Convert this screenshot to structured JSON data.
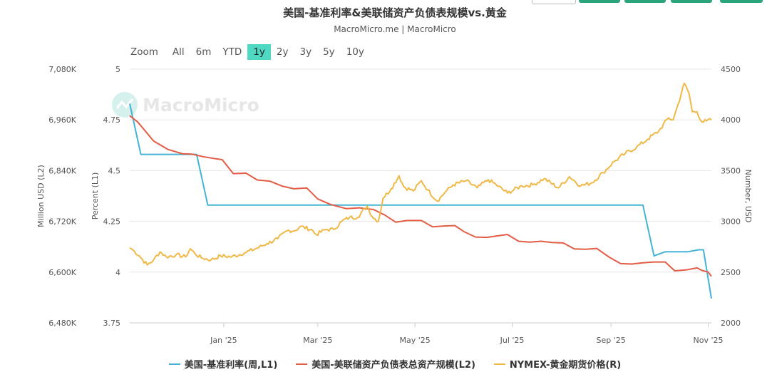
{
  "header": {
    "title": "美国-基准利率&美联储资产负债表规模vs.黄金",
    "subtitle": "MacroMicro.me | MacroMicro",
    "watermark": "MacroMicro"
  },
  "zoom": {
    "label": "Zoom",
    "buttons": [
      "All",
      "6m",
      "YTD",
      "1y",
      "2y",
      "3y",
      "5y",
      "10y"
    ],
    "active": "1y"
  },
  "colors": {
    "rate": "#44b3d6",
    "balance": "#e35c45",
    "gold": "#f0b847"
  },
  "chart_data": {
    "type": "line",
    "x_tick_labels": [
      "Jan '25",
      "Mar '25",
      "May '25",
      "Jul '25",
      "Sep '25",
      "Nov '25"
    ],
    "x_tick_dates": [
      "2025-01-01",
      "2025-03-01",
      "2025-05-01",
      "2025-07-01",
      "2025-09-01",
      "2025-11-01"
    ],
    "x_range": [
      "2024-11-03",
      "2025-11-03"
    ],
    "left_axis_outer": {
      "label": "Million USD (L2)",
      "range": [
        6480000,
        7080000
      ],
      "ticks": [
        "6,480K",
        "6,600K",
        "6,720K",
        "6,840K",
        "6,960K",
        "7,080K"
      ],
      "tick_values": [
        6480000,
        6600000,
        6720000,
        6840000,
        6960000,
        7080000
      ]
    },
    "left_axis_inner": {
      "label": "Percent (L1)",
      "range": [
        3.75,
        5
      ],
      "ticks": [
        "3.75",
        "4",
        "4.25",
        "4.5",
        "4.75",
        "5"
      ],
      "tick_values": [
        3.75,
        4,
        4.25,
        4.5,
        4.75,
        5
      ]
    },
    "right_axis": {
      "label": "Number, USD",
      "range": [
        2000,
        4500
      ],
      "ticks": [
        "2000",
        "2500",
        "3000",
        "3500",
        "4000",
        "4500"
      ],
      "tick_values": [
        2000,
        2500,
        3000,
        3500,
        4000,
        4500
      ]
    },
    "grid": true,
    "legend_position": "bottom",
    "series": [
      {
        "name": "美国-基准利率(周,L1)",
        "axis": "left_inner",
        "points": [
          [
            "2024-11-03",
            4.83
          ],
          [
            "2024-11-10",
            4.58
          ],
          [
            "2024-11-17",
            4.58
          ],
          [
            "2024-12-15",
            4.58
          ],
          [
            "2024-12-22",
            4.33
          ],
          [
            "2025-01-15",
            4.33
          ],
          [
            "2025-03-15",
            4.33
          ],
          [
            "2025-05-15",
            4.33
          ],
          [
            "2025-07-15",
            4.33
          ],
          [
            "2025-09-15",
            4.33
          ],
          [
            "2025-09-21",
            4.33
          ],
          [
            "2025-09-28",
            4.08
          ],
          [
            "2025-10-05",
            4.1
          ],
          [
            "2025-10-19",
            4.1
          ],
          [
            "2025-10-26",
            4.11
          ],
          [
            "2025-10-29",
            4.11
          ],
          [
            "2025-11-03",
            3.87
          ]
        ]
      },
      {
        "name": "美国-美联储资产负债表总资产规模(L2)",
        "axis": "left_outer",
        "points": [
          [
            "2024-11-03",
            6970000
          ],
          [
            "2024-11-08",
            6955000
          ],
          [
            "2024-11-18",
            6910000
          ],
          [
            "2024-11-27",
            6890000
          ],
          [
            "2024-12-06",
            6880000
          ],
          [
            "2024-12-12",
            6879000
          ],
          [
            "2024-12-19",
            6873000
          ],
          [
            "2024-12-27",
            6868000
          ],
          [
            "2024-12-31",
            6866000
          ],
          [
            "2025-01-07",
            6833000
          ],
          [
            "2025-01-15",
            6834000
          ],
          [
            "2025-01-22",
            6818000
          ],
          [
            "2025-01-30",
            6815000
          ],
          [
            "2025-02-07",
            6803000
          ],
          [
            "2025-02-14",
            6797000
          ],
          [
            "2025-02-22",
            6799000
          ],
          [
            "2025-03-01",
            6773000
          ],
          [
            "2025-03-09",
            6760000
          ],
          [
            "2025-03-19",
            6750000
          ],
          [
            "2025-03-27",
            6752000
          ],
          [
            "2025-04-05",
            6748000
          ],
          [
            "2025-04-12",
            6735000
          ],
          [
            "2025-04-19",
            6718000
          ],
          [
            "2025-04-26",
            6722000
          ],
          [
            "2025-05-05",
            6722000
          ],
          [
            "2025-05-12",
            6707000
          ],
          [
            "2025-05-19",
            6709000
          ],
          [
            "2025-05-26",
            6710000
          ],
          [
            "2025-06-01",
            6695000
          ],
          [
            "2025-06-08",
            6683000
          ],
          [
            "2025-06-15",
            6682000
          ],
          [
            "2025-06-28",
            6689000
          ],
          [
            "2025-07-05",
            6673000
          ],
          [
            "2025-07-12",
            6671000
          ],
          [
            "2025-07-19",
            6673000
          ],
          [
            "2025-07-26",
            6670000
          ],
          [
            "2025-08-02",
            6669000
          ],
          [
            "2025-08-09",
            6655000
          ],
          [
            "2025-08-16",
            6654000
          ],
          [
            "2025-08-23",
            6656000
          ],
          [
            "2025-08-31",
            6635000
          ],
          [
            "2025-09-07",
            6620000
          ],
          [
            "2025-09-14",
            6619000
          ],
          [
            "2025-09-21",
            6622000
          ],
          [
            "2025-09-28",
            6624000
          ],
          [
            "2025-10-05",
            6624000
          ],
          [
            "2025-10-11",
            6603000
          ],
          [
            "2025-10-18",
            6605000
          ],
          [
            "2025-10-25",
            6610000
          ],
          [
            "2025-10-28",
            6604000
          ],
          [
            "2025-11-01",
            6600000
          ],
          [
            "2025-11-03",
            6590000
          ]
        ]
      },
      {
        "name": "NYMEX-黄金期货价格(R)",
        "axis": "right",
        "points": [
          [
            "2024-11-03",
            2740
          ],
          [
            "2024-11-06",
            2705
          ],
          [
            "2024-11-09",
            2660
          ],
          [
            "2024-11-14",
            2570
          ],
          [
            "2024-11-18",
            2620
          ],
          [
            "2024-11-22",
            2700
          ],
          [
            "2024-11-26",
            2650
          ],
          [
            "2024-12-02",
            2670
          ],
          [
            "2024-12-08",
            2650
          ],
          [
            "2024-12-11",
            2730
          ],
          [
            "2024-12-14",
            2680
          ],
          [
            "2024-12-18",
            2640
          ],
          [
            "2024-12-24",
            2620
          ],
          [
            "2024-12-30",
            2660
          ],
          [
            "2025-01-06",
            2650
          ],
          [
            "2025-01-14",
            2690
          ],
          [
            "2025-01-21",
            2730
          ],
          [
            "2025-01-28",
            2780
          ],
          [
            "2025-02-04",
            2830
          ],
          [
            "2025-02-10",
            2910
          ],
          [
            "2025-02-15",
            2910
          ],
          [
            "2025-02-18",
            2950
          ],
          [
            "2025-02-25",
            2920
          ],
          [
            "2025-02-28",
            2870
          ],
          [
            "2025-03-06",
            2920
          ],
          [
            "2025-03-11",
            2920
          ],
          [
            "2025-03-16",
            3000
          ],
          [
            "2025-03-21",
            3040
          ],
          [
            "2025-03-26",
            3040
          ],
          [
            "2025-04-01",
            3150
          ],
          [
            "2025-04-04",
            3050
          ],
          [
            "2025-04-08",
            3000
          ],
          [
            "2025-04-11",
            3230
          ],
          [
            "2025-04-16",
            3320
          ],
          [
            "2025-04-21",
            3450
          ],
          [
            "2025-04-24",
            3340
          ],
          [
            "2025-04-30",
            3300
          ],
          [
            "2025-05-05",
            3400
          ],
          [
            "2025-05-09",
            3310
          ],
          [
            "2025-05-15",
            3200
          ],
          [
            "2025-05-20",
            3290
          ],
          [
            "2025-05-25",
            3360
          ],
          [
            "2025-06-02",
            3400
          ],
          [
            "2025-06-09",
            3330
          ],
          [
            "2025-06-16",
            3410
          ],
          [
            "2025-06-21",
            3360
          ],
          [
            "2025-06-28",
            3280
          ],
          [
            "2025-07-07",
            3350
          ],
          [
            "2025-07-14",
            3360
          ],
          [
            "2025-07-21",
            3420
          ],
          [
            "2025-07-30",
            3330
          ],
          [
            "2025-08-06",
            3440
          ],
          [
            "2025-08-13",
            3350
          ],
          [
            "2025-08-20",
            3380
          ],
          [
            "2025-08-27",
            3480
          ],
          [
            "2025-09-03",
            3590
          ],
          [
            "2025-09-10",
            3670
          ],
          [
            "2025-09-17",
            3730
          ],
          [
            "2025-09-24",
            3810
          ],
          [
            "2025-10-01",
            3890
          ],
          [
            "2025-10-07",
            4020
          ],
          [
            "2025-10-10",
            4000
          ],
          [
            "2025-10-13",
            4150
          ],
          [
            "2025-10-17",
            4360
          ],
          [
            "2025-10-20",
            4260
          ],
          [
            "2025-10-22",
            4080
          ],
          [
            "2025-10-25",
            4080
          ],
          [
            "2025-10-28",
            3980
          ],
          [
            "2025-10-31",
            3990
          ],
          [
            "2025-11-03",
            4000
          ]
        ]
      }
    ]
  }
}
